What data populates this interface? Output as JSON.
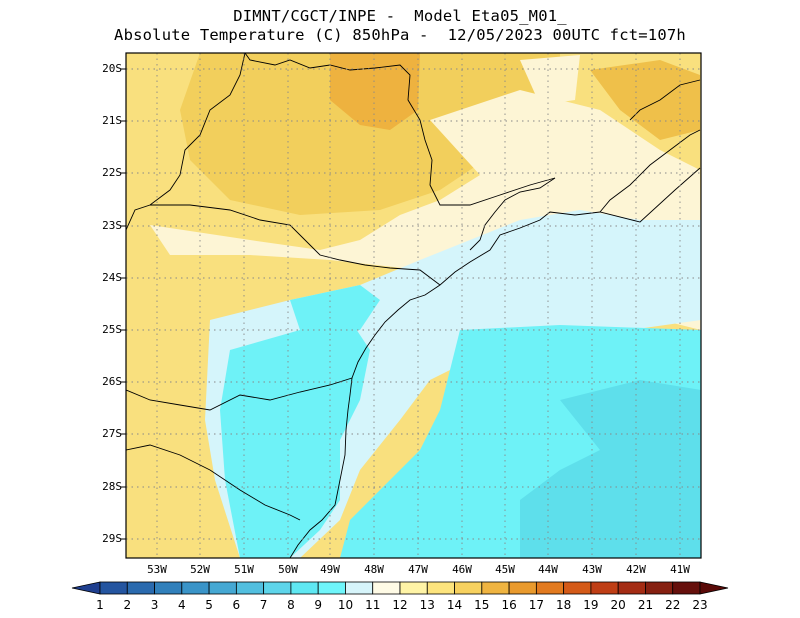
{
  "title_line1": "DIMNT/CGCT/INPE -  Model Eta05_M01_",
  "title_line2": "Absolute Temperature (C) 850hPa -  12/05/2023 00UTC fct=107h",
  "map": {
    "lon_range": [
      -53.9,
      -40.5
    ],
    "lat_range": [
      -29.4,
      -20.0
    ],
    "lat_labels": [
      "20S",
      "21S",
      "22S",
      "23S",
      "24S",
      "25S",
      "26S",
      "27S",
      "28S",
      "29S"
    ],
    "lon_labels": [
      "53W",
      "52W",
      "51W",
      "50W",
      "49W",
      "48W",
      "47W",
      "46W",
      "45W",
      "44W",
      "43W",
      "42W",
      "41W"
    ]
  },
  "colorbar": {
    "labels": [
      "1",
      "2",
      "3",
      "4",
      "5",
      "6",
      "7",
      "8",
      "9",
      "10",
      "11",
      "12",
      "13",
      "14",
      "15",
      "16",
      "17",
      "18",
      "19",
      "20",
      "21",
      "22",
      "23"
    ],
    "colors": [
      "#1f3f8f",
      "#2455a0",
      "#2a6aae",
      "#3180bb",
      "#3a94c8",
      "#45a8d3",
      "#52bfdf",
      "#5ed5ea",
      "#5fe8f2",
      "#6ff6fb",
      "#d7f5fb",
      "#fffbe6",
      "#fff4a6",
      "#fde47d",
      "#f7d15f",
      "#efb441",
      "#e99a2d",
      "#e27a1f",
      "#d45a18",
      "#bf3e15",
      "#a42c14",
      "#862011",
      "#66100c"
    ]
  },
  "field": {
    "regions": [
      {
        "name": "warm-north",
        "value": 14,
        "color": "#f7dc6f"
      },
      {
        "name": "hot-core",
        "value": 16,
        "color": "#eeb23f"
      },
      {
        "name": "warm-west",
        "value": 13,
        "color": "#f9e07e"
      },
      {
        "name": "mild-band",
        "value": 12,
        "color": "#fdf5d5"
      },
      {
        "name": "cool-light",
        "value": 10,
        "color": "#d5f5fb"
      },
      {
        "name": "cool",
        "value": 9,
        "color": "#6ef2f7"
      },
      {
        "name": "cool-ocean",
        "value": 8,
        "color": "#5edfeb"
      }
    ]
  }
}
